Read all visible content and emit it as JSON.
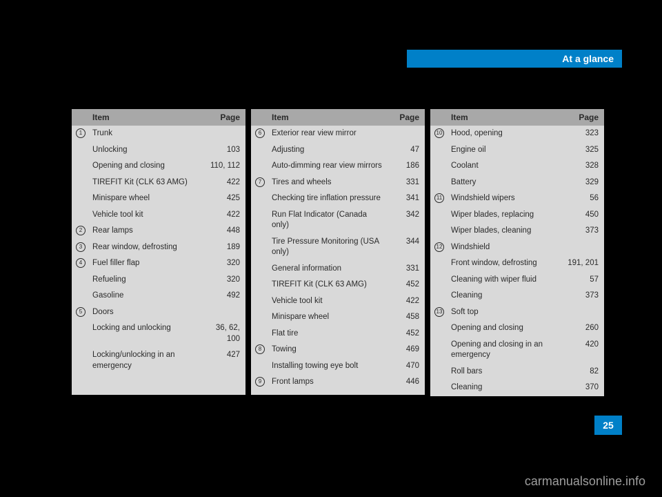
{
  "header": {
    "title": "At a glance"
  },
  "page_number": "25",
  "watermark": "carmanualsonline.info",
  "columns": [
    {
      "header_item": "Item",
      "header_page": "Page",
      "rows": [
        {
          "num": "1",
          "item": "Trunk",
          "page": ""
        },
        {
          "num": "",
          "item": "Unlocking",
          "page": "103"
        },
        {
          "num": "",
          "item": "Opening and closing",
          "page": "110, 112"
        },
        {
          "num": "",
          "item": "TIREFIT Kit (CLK 63 AMG)",
          "page": "422"
        },
        {
          "num": "",
          "item": "Minispare wheel",
          "page": "425"
        },
        {
          "num": "",
          "item": "Vehicle tool kit",
          "page": "422"
        },
        {
          "num": "2",
          "item": "Rear lamps",
          "page": "448"
        },
        {
          "num": "3",
          "item": "Rear window, defrosting",
          "page": "189"
        },
        {
          "num": "4",
          "item": "Fuel filler flap",
          "page": "320"
        },
        {
          "num": "",
          "item": "Refueling",
          "page": "320"
        },
        {
          "num": "",
          "item": "Gasoline",
          "page": "492"
        },
        {
          "num": "5",
          "item": "Doors",
          "page": ""
        },
        {
          "num": "",
          "item": "Locking and unlocking",
          "page": "36, 62, 100"
        },
        {
          "num": "",
          "item": "Locking/unlocking in an emergency",
          "page": "427"
        }
      ]
    },
    {
      "header_item": "Item",
      "header_page": "Page",
      "rows": [
        {
          "num": "6",
          "item": "Exterior rear view mirror",
          "page": ""
        },
        {
          "num": "",
          "item": "Adjusting",
          "page": "47"
        },
        {
          "num": "",
          "item": "Auto-dimming rear view mirrors",
          "page": "186"
        },
        {
          "num": "7",
          "item": "Tires and wheels",
          "page": "331"
        },
        {
          "num": "",
          "item": "Checking tire inflation pressure",
          "page": "341"
        },
        {
          "num": "",
          "item": "Run Flat Indicator (Canada only)",
          "page": "342"
        },
        {
          "num": "",
          "item": "Tire Pressure Monitoring (USA only)",
          "page": "344"
        },
        {
          "num": "",
          "item": "General information",
          "page": "331"
        },
        {
          "num": "",
          "item": "TIREFIT Kit (CLK 63 AMG)",
          "page": "452"
        },
        {
          "num": "",
          "item": "Vehicle tool kit",
          "page": "422"
        },
        {
          "num": "",
          "item": "Minispare wheel",
          "page": "458"
        },
        {
          "num": "",
          "item": "Flat tire",
          "page": "452"
        },
        {
          "num": "8",
          "item": "Towing",
          "page": "469"
        },
        {
          "num": "",
          "item": "Installing towing eye bolt",
          "page": "470"
        },
        {
          "num": "9",
          "item": "Front lamps",
          "page": "446"
        }
      ]
    },
    {
      "header_item": "Item",
      "header_page": "Page",
      "rows": [
        {
          "num": "10",
          "item": "Hood, opening",
          "page": "323"
        },
        {
          "num": "",
          "item": "Engine oil",
          "page": "325"
        },
        {
          "num": "",
          "item": "Coolant",
          "page": "328"
        },
        {
          "num": "",
          "item": "Battery",
          "page": "329"
        },
        {
          "num": "11",
          "item": "Windshield wipers",
          "page": "56"
        },
        {
          "num": "",
          "item": "Wiper blades, replacing",
          "page": "450"
        },
        {
          "num": "",
          "item": "Wiper blades, cleaning",
          "page": "373"
        },
        {
          "num": "12",
          "item": "Windshield",
          "page": ""
        },
        {
          "num": "",
          "item": "Front window, defrosting",
          "page": "191, 201"
        },
        {
          "num": "",
          "item": "Cleaning with wiper fluid",
          "page": "57"
        },
        {
          "num": "",
          "item": "Cleaning",
          "page": "373"
        },
        {
          "num": "13",
          "item": "Soft top",
          "page": ""
        },
        {
          "num": "",
          "item": "Opening and closing",
          "page": "260"
        },
        {
          "num": "",
          "item": "Opening and closing in an emergency",
          "page": "420"
        },
        {
          "num": "",
          "item": "Roll bars",
          "page": "82"
        },
        {
          "num": "",
          "item": "Cleaning",
          "page": "370"
        }
      ]
    }
  ]
}
